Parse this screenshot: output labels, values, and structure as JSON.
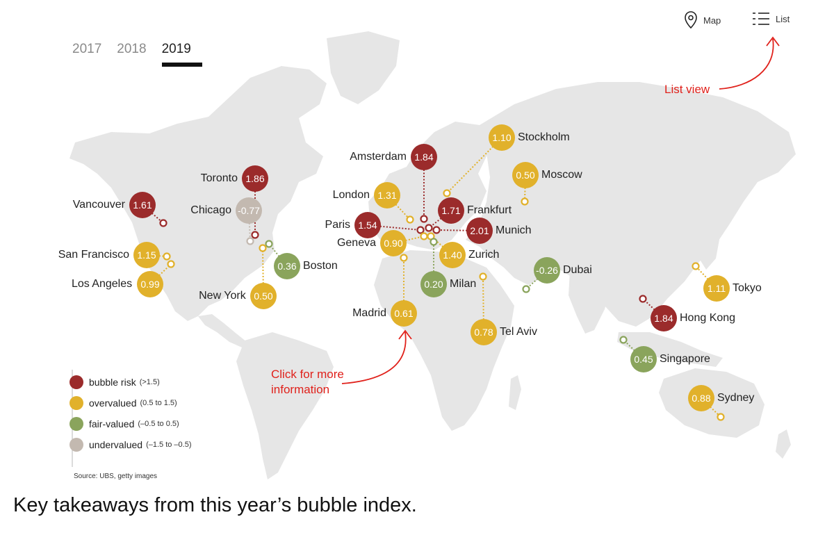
{
  "tabs": {
    "years": [
      {
        "label": "2017",
        "active": false
      },
      {
        "label": "2018",
        "active": false
      },
      {
        "label": "2019",
        "active": true
      }
    ]
  },
  "view_toggle": {
    "map_label": "Map",
    "list_label": "List"
  },
  "annotations": {
    "list_view": "List view",
    "click_info_line1": "Click for more",
    "click_info_line2": "information"
  },
  "categories": {
    "bubble": {
      "label": "bubble risk",
      "range": "(>1.5)",
      "color": "#9b2b2b"
    },
    "over": {
      "label": "overvalued",
      "range": "(0.5 to 1.5)",
      "color": "#e1b12b"
    },
    "fair": {
      "label": "fair-valued",
      "range": "(–0.5 to 0.5)",
      "color": "#8aa45c"
    },
    "under": {
      "label": "undervalued",
      "range": "(–1.5 to –0.5)",
      "color": "#c3b9b0"
    }
  },
  "legend_order": [
    "bubble",
    "over",
    "fair",
    "under"
  ],
  "cities": [
    {
      "name": "Vancouver",
      "value": "1.61",
      "cat": "bubble"
    },
    {
      "name": "Toronto",
      "value": "1.86",
      "cat": "bubble"
    },
    {
      "name": "Chicago",
      "value": "-0.77",
      "cat": "under"
    },
    {
      "name": "San Francisco",
      "value": "1.15",
      "cat": "over"
    },
    {
      "name": "Los Angeles",
      "value": "0.99",
      "cat": "over"
    },
    {
      "name": "Boston",
      "value": "0.36",
      "cat": "fair"
    },
    {
      "name": "New York",
      "value": "0.50",
      "cat": "over"
    },
    {
      "name": "Amsterdam",
      "value": "1.84",
      "cat": "bubble"
    },
    {
      "name": "London",
      "value": "1.31",
      "cat": "over"
    },
    {
      "name": "Paris",
      "value": "1.54",
      "cat": "bubble"
    },
    {
      "name": "Geneva",
      "value": "0.90",
      "cat": "over"
    },
    {
      "name": "Frankfurt",
      "value": "1.71",
      "cat": "bubble"
    },
    {
      "name": "Munich",
      "value": "2.01",
      "cat": "bubble"
    },
    {
      "name": "Zurich",
      "value": "1.40",
      "cat": "over"
    },
    {
      "name": "Milan",
      "value": "0.20",
      "cat": "fair"
    },
    {
      "name": "Madrid",
      "value": "0.61",
      "cat": "over"
    },
    {
      "name": "Stockholm",
      "value": "1.10",
      "cat": "over"
    },
    {
      "name": "Moscow",
      "value": "0.50",
      "cat": "over"
    },
    {
      "name": "Tel Aviv",
      "value": "0.78",
      "cat": "over"
    },
    {
      "name": "Dubai",
      "value": "-0.26",
      "cat": "fair"
    },
    {
      "name": "Tokyo",
      "value": "1.11",
      "cat": "over"
    },
    {
      "name": "Hong Kong",
      "value": "1.84",
      "cat": "bubble"
    },
    {
      "name": "Singapore",
      "value": "0.45",
      "cat": "fair"
    },
    {
      "name": "Sydney",
      "value": "0.88",
      "cat": "over"
    }
  ],
  "source": "Source: UBS, getty images",
  "caption": "Key takeaways from this year’s bubble index."
}
